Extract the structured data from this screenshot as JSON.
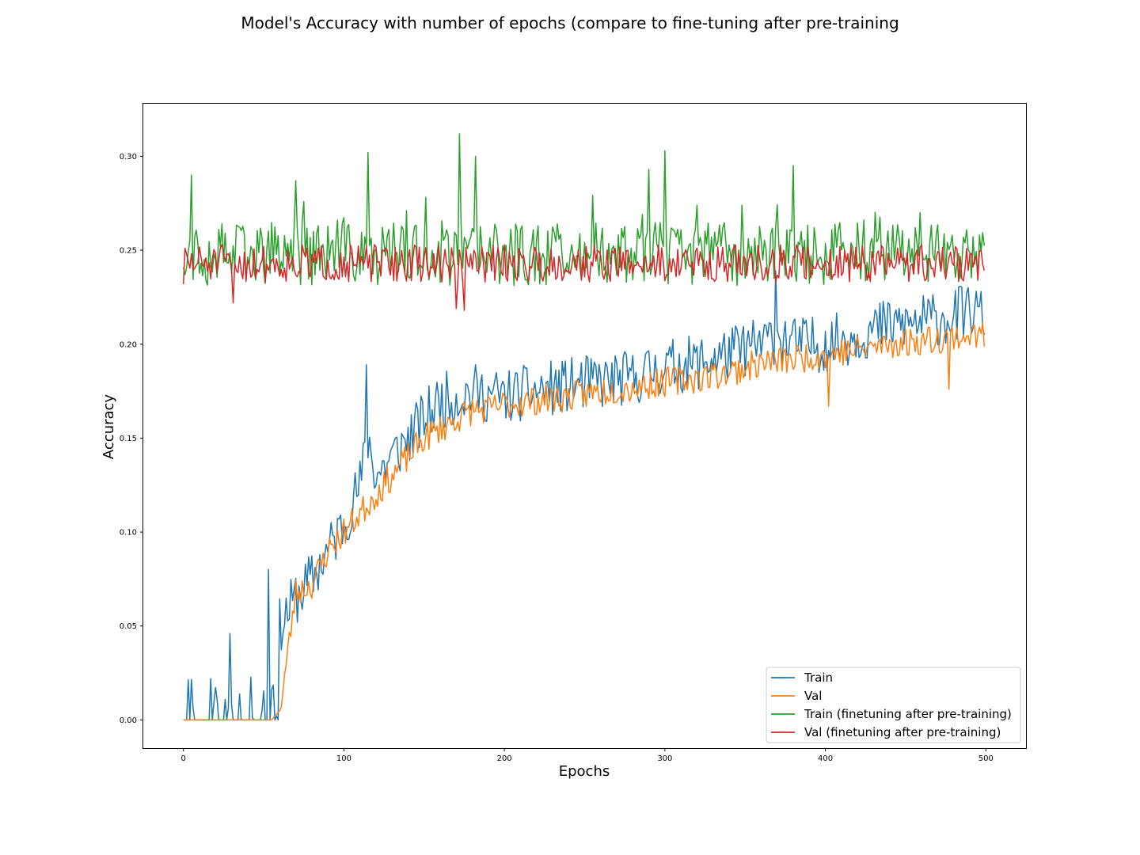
{
  "chart_data": {
    "type": "line",
    "title": "Model's Accuracy with number of epochs (compare to fine-tuning after pre-training",
    "xlabel": "Epochs",
    "ylabel": "Accuracy",
    "xlim": [
      -25,
      525
    ],
    "ylim": [
      -0.015,
      0.328
    ],
    "xticks": [
      0,
      100,
      200,
      300,
      400,
      500
    ],
    "xtick_labels": [
      "0",
      "100",
      "200",
      "300",
      "400",
      "500"
    ],
    "yticks": [
      0.0,
      0.05,
      0.1,
      0.15,
      0.2,
      0.25,
      0.3
    ],
    "ytick_labels": [
      "0.00",
      "0.05",
      "0.10",
      "0.15",
      "0.20",
      "0.25",
      "0.30"
    ],
    "grid": false,
    "legend_position": "lower-right",
    "num_epochs": 500,
    "series": [
      {
        "name": "Train",
        "color": "#1f77b4",
        "x": [
          0,
          10,
          20,
          30,
          40,
          50,
          60,
          70,
          80,
          90,
          100,
          110,
          115,
          120,
          130,
          140,
          150,
          160,
          170,
          180,
          190,
          200,
          220,
          240,
          260,
          280,
          300,
          320,
          340,
          360,
          370,
          380,
          400,
          420,
          440,
          460,
          480,
          490,
          499
        ],
        "y": [
          0.0,
          0.003,
          0.005,
          0.006,
          0.008,
          0.03,
          0.05,
          0.065,
          0.075,
          0.09,
          0.105,
          0.125,
          0.15,
          0.13,
          0.14,
          0.15,
          0.16,
          0.17,
          0.172,
          0.175,
          0.173,
          0.172,
          0.175,
          0.178,
          0.18,
          0.182,
          0.188,
          0.19,
          0.195,
          0.2,
          0.205,
          0.2,
          0.2,
          0.205,
          0.21,
          0.212,
          0.215,
          0.218,
          0.215
        ]
      },
      {
        "name": "Val",
        "color": "#ff7f0e",
        "x": [
          0,
          55,
          60,
          65,
          70,
          80,
          90,
          100,
          110,
          120,
          130,
          140,
          150,
          160,
          170,
          180,
          190,
          200,
          220,
          240,
          260,
          280,
          300,
          320,
          340,
          360,
          380,
          400,
          420,
          440,
          460,
          480,
          499
        ],
        "y": [
          0.0,
          0.0,
          0.005,
          0.035,
          0.068,
          0.072,
          0.09,
          0.1,
          0.11,
          0.12,
          0.13,
          0.14,
          0.15,
          0.155,
          0.16,
          0.165,
          0.165,
          0.168,
          0.17,
          0.172,
          0.175,
          0.177,
          0.18,
          0.182,
          0.185,
          0.19,
          0.192,
          0.195,
          0.197,
          0.2,
          0.202,
          0.204,
          0.205
        ]
      },
      {
        "name": "Train (finetuning after pre-training)",
        "color": "#2ca02c",
        "base": 0.248,
        "spikes": [
          [
            5,
            0.29
          ],
          [
            115,
            0.302
          ],
          [
            172,
            0.312
          ],
          [
            182,
            0.3
          ],
          [
            300,
            0.303
          ],
          [
            290,
            0.293
          ],
          [
            380,
            0.295
          ],
          [
            70,
            0.287
          ]
        ]
      },
      {
        "name": "Val (finetuning after pre-training)",
        "color": "#d62728",
        "base": 0.243
      }
    ]
  }
}
